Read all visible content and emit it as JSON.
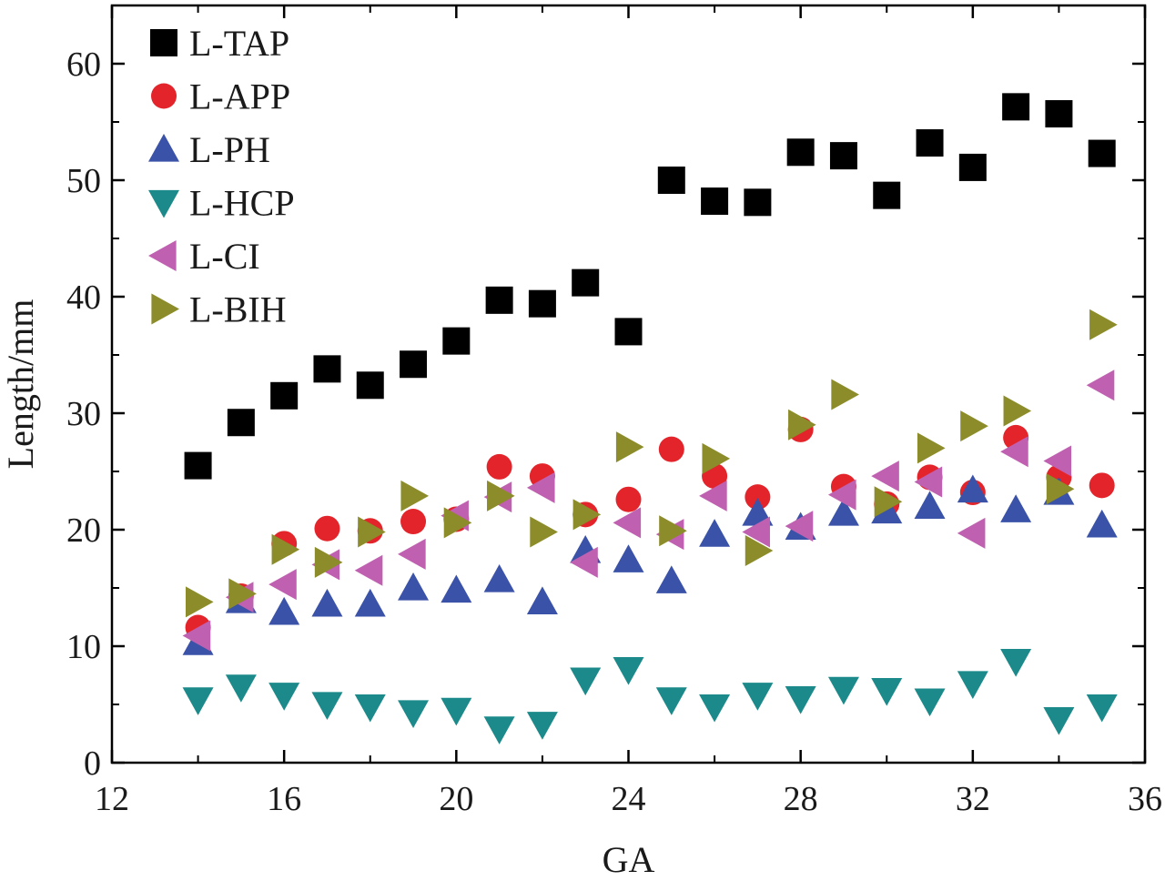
{
  "chart_data": {
    "type": "scatter",
    "title": "",
    "xlabel": "GA",
    "ylabel": "Length/mm",
    "xlim": [
      12,
      36
    ],
    "ylim": [
      0,
      65
    ],
    "xticks": [
      12,
      16,
      20,
      24,
      28,
      32,
      36
    ],
    "yticks": [
      0,
      10,
      20,
      30,
      40,
      50,
      60
    ],
    "grid": false,
    "legend_position": "top-left",
    "x": [
      14,
      15,
      16,
      17,
      18,
      19,
      20,
      21,
      22,
      23,
      24,
      25,
      26,
      27,
      28,
      29,
      30,
      31,
      32,
      33,
      34,
      35
    ],
    "series": [
      {
        "name": "L-TAP",
        "marker": "square",
        "color": "#000000",
        "values": [
          25.5,
          29.2,
          31.5,
          33.8,
          32.4,
          34.2,
          36.2,
          39.7,
          39.4,
          41.2,
          37.0,
          50.0,
          48.2,
          48.1,
          52.4,
          52.1,
          48.7,
          53.2,
          51.1,
          56.3,
          55.7,
          52.3
        ]
      },
      {
        "name": "L-APP",
        "marker": "circle",
        "color": "#e3242b",
        "values": [
          11.6,
          14.3,
          18.8,
          20.1,
          19.9,
          20.7,
          20.9,
          25.4,
          24.6,
          21.3,
          22.6,
          26.9,
          24.6,
          22.8,
          28.6,
          23.7,
          22.2,
          24.5,
          23.2,
          27.9,
          24.5,
          23.8
        ]
      },
      {
        "name": "L-PH",
        "marker": "triangle-up",
        "color": "#3a52a8",
        "values": [
          10.3,
          13.9,
          12.9,
          13.6,
          13.6,
          15.0,
          14.8,
          15.7,
          13.8,
          18.2,
          17.4,
          15.6,
          19.6,
          21.4,
          20.2,
          21.4,
          21.6,
          22.0,
          23.4,
          21.7,
          23.2,
          20.4
        ]
      },
      {
        "name": "L-HCP",
        "marker": "triangle-down",
        "color": "#1c8a8a",
        "values": [
          5.4,
          6.5,
          5.8,
          5.0,
          4.8,
          4.3,
          4.5,
          2.9,
          3.3,
          7.1,
          8.0,
          5.4,
          4.8,
          5.8,
          5.5,
          6.3,
          6.2,
          5.3,
          6.8,
          8.7,
          3.7,
          4.8
        ]
      },
      {
        "name": "L-CI",
        "marker": "triangle-left",
        "color": "#c060b0",
        "values": [
          10.9,
          14.2,
          15.3,
          17.0,
          16.5,
          17.9,
          21.2,
          22.8,
          23.6,
          17.2,
          20.6,
          19.6,
          22.9,
          19.8,
          20.3,
          23.0,
          24.6,
          24.1,
          19.7,
          26.7,
          25.9,
          32.4
        ]
      },
      {
        "name": "L-BIH",
        "marker": "triangle-right",
        "color": "#8c8c2a",
        "values": [
          13.8,
          14.5,
          18.3,
          17.2,
          19.8,
          22.9,
          20.6,
          22.9,
          19.8,
          21.3,
          27.1,
          19.9,
          26.1,
          18.2,
          29.0,
          31.6,
          22.4,
          27.0,
          28.9,
          30.2,
          23.5,
          37.6
        ]
      }
    ]
  }
}
